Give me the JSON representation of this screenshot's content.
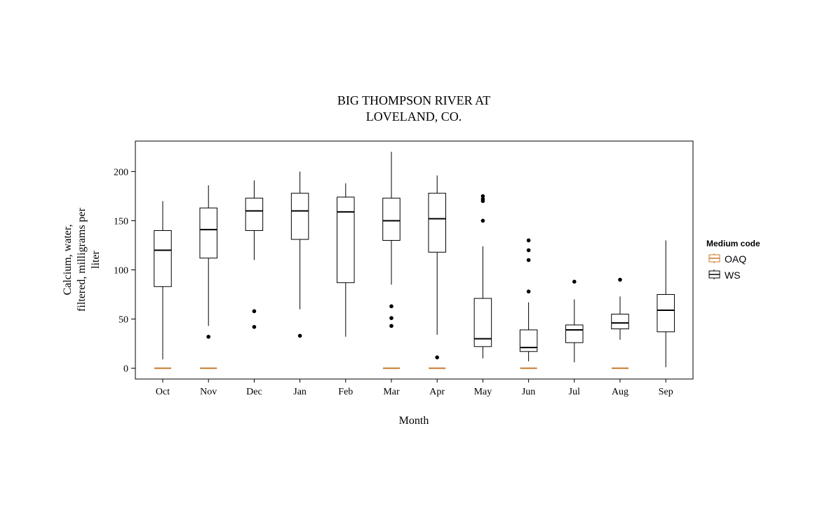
{
  "chart_data": {
    "type": "box",
    "title_lines": [
      "BIG THOMPSON RIVER AT",
      "LOVELAND, CO."
    ],
    "xlabel": "Month",
    "ylabel_lines": [
      "Calcium, water,",
      "filtered, milligrams per",
      "liter"
    ],
    "categories": [
      "Oct",
      "Nov",
      "Dec",
      "Jan",
      "Feb",
      "Mar",
      "Apr",
      "May",
      "Jun",
      "Jul",
      "Aug",
      "Sep"
    ],
    "ylim": [
      -11,
      231
    ],
    "yticks": [
      0,
      50,
      100,
      150,
      200
    ],
    "legend": {
      "title": "Medium code",
      "position": "right",
      "entries": [
        {
          "name": "OAQ",
          "color": "#c8782a"
        },
        {
          "name": "WS",
          "color": "#000000"
        }
      ]
    },
    "series": [
      {
        "name": "OAQ",
        "color": "#c8782a",
        "boxes": [
          {
            "category": "Oct",
            "value": 0
          },
          {
            "category": "Nov",
            "value": 0
          },
          {
            "category": "Mar",
            "value": 0
          },
          {
            "category": "Apr",
            "value": 0
          },
          {
            "category": "Jun",
            "value": 0
          },
          {
            "category": "Aug",
            "value": 0
          }
        ]
      },
      {
        "name": "WS",
        "color": "#000000",
        "boxes": [
          {
            "category": "Oct",
            "whisker_low": 9,
            "q1": 83,
            "median": 120,
            "q3": 140,
            "whisker_high": 170,
            "outliers": []
          },
          {
            "category": "Nov",
            "whisker_low": 43,
            "q1": 112,
            "median": 141,
            "q3": 163,
            "whisker_high": 186,
            "outliers": [
              32
            ]
          },
          {
            "category": "Dec",
            "whisker_low": 110,
            "q1": 140,
            "median": 160,
            "q3": 173,
            "whisker_high": 191,
            "outliers": [
              58,
              42
            ]
          },
          {
            "category": "Jan",
            "whisker_low": 60,
            "q1": 131,
            "median": 160,
            "q3": 178,
            "whisker_high": 200,
            "outliers": [
              33
            ]
          },
          {
            "category": "Feb",
            "whisker_low": 32,
            "q1": 87,
            "median": 159,
            "q3": 174,
            "whisker_high": 188,
            "outliers": []
          },
          {
            "category": "Mar",
            "whisker_low": 85,
            "q1": 130,
            "median": 150,
            "q3": 173,
            "whisker_high": 220,
            "outliers": [
              63,
              51,
              43
            ]
          },
          {
            "category": "Apr",
            "whisker_low": 34,
            "q1": 118,
            "median": 152,
            "q3": 178,
            "whisker_high": 196,
            "outliers": [
              11
            ]
          },
          {
            "category": "May",
            "whisker_low": 10,
            "q1": 22,
            "median": 30,
            "q3": 71,
            "whisker_high": 124,
            "outliers": [
              175,
              172,
              170,
              150
            ]
          },
          {
            "category": "Jun",
            "whisker_low": 7,
            "q1": 17,
            "median": 21,
            "q3": 39,
            "whisker_high": 67,
            "outliers": [
              130,
              120,
              110,
              78
            ]
          },
          {
            "category": "Jul",
            "whisker_low": 6,
            "q1": 26,
            "median": 39,
            "q3": 44,
            "whisker_high": 70,
            "outliers": [
              88
            ]
          },
          {
            "category": "Aug",
            "whisker_low": 29,
            "q1": 40,
            "median": 46,
            "q3": 55,
            "whisker_high": 73,
            "outliers": [
              90
            ]
          },
          {
            "category": "Sep",
            "whisker_low": 1,
            "q1": 37,
            "median": 59,
            "q3": 75,
            "whisker_high": 130,
            "outliers": []
          }
        ]
      }
    ]
  }
}
